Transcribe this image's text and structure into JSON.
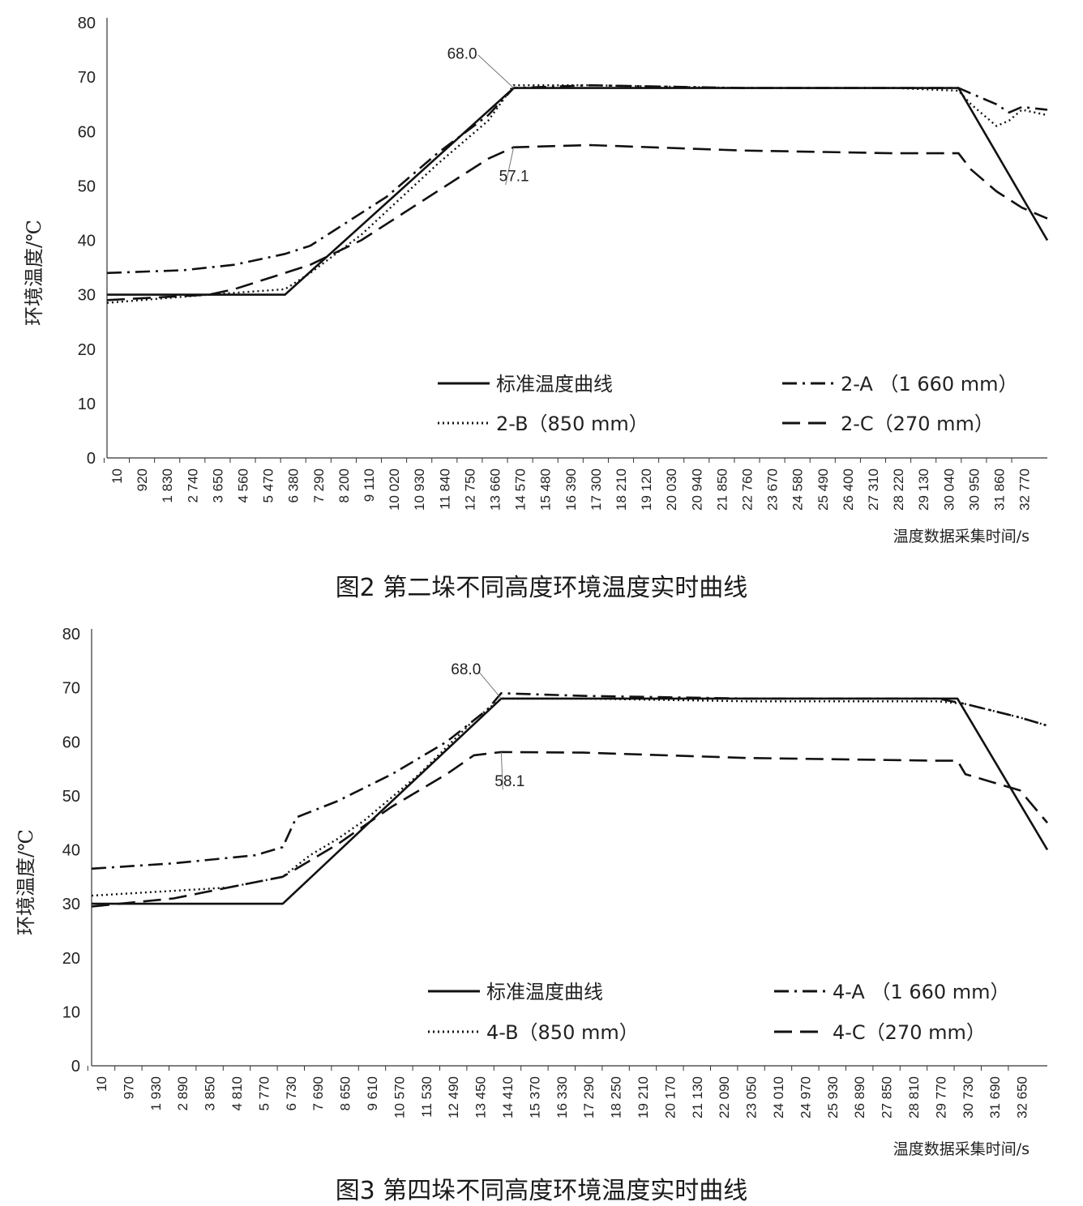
{
  "figures": [
    {
      "caption": "图2  第二垛不同高度环境温度实时曲线",
      "chart_data": {
        "type": "line",
        "ylabel": "环境温度/℃",
        "xlabel": "温度数据采集时间/s",
        "ylim": [
          0,
          80
        ],
        "yticks": [
          0,
          10,
          20,
          30,
          40,
          50,
          60,
          70,
          80
        ],
        "xlim": [
          10,
          33680
        ],
        "x_tick_labels": [
          "10",
          "920",
          "1 830",
          "2 740",
          "3 650",
          "4 560",
          "5 470",
          "6 380",
          "7 290",
          "8 200",
          "9 110",
          "10 020",
          "10 930",
          "11 840",
          "12 750",
          "13 660",
          "14 570",
          "15 480",
          "16 390",
          "17 300",
          "18 210",
          "19 120",
          "20 030",
          "20 940",
          "21 850",
          "22 760",
          "23 670",
          "24 580",
          "25 490",
          "26 400",
          "27 310",
          "28 220",
          "29 130",
          "30 040",
          "30 950",
          "31 860",
          "32 770"
        ],
        "legend": "bottom",
        "series": [
          {
            "name": "标准温度曲线",
            "style": "solid",
            "x": [
              10,
              6380,
              14570,
              30500,
              33680
            ],
            "y": [
              30,
              30,
              68,
              68,
              40
            ]
          },
          {
            "name": "2-A （1 660 mm）",
            "style": "dashdot",
            "x": [
              10,
              2740,
              4560,
              6380,
              7290,
              8200,
              10020,
              11840,
              13660,
              14570,
              17300,
              22760,
              28220,
              30500,
              30950,
              31860,
              32310,
              32770,
              33680
            ],
            "y": [
              34,
              34.5,
              35.5,
              37.5,
              39,
              42,
              48,
              56,
              63,
              68,
              68.5,
              68,
              68,
              68,
              67,
              65,
              63.5,
              64.5,
              64
            ]
          },
          {
            "name": "2-B（850 mm）",
            "style": "dotted",
            "x": [
              10,
              3650,
              6380,
              7290,
              9110,
              11840,
              13660,
              14570,
              17300,
              22760,
              28220,
              30500,
              30950,
              31860,
              32310,
              32770,
              33680
            ],
            "y": [
              28.5,
              30,
              31,
              34,
              41,
              54,
              62,
              68.5,
              68.5,
              68,
              68,
              67.5,
              65,
              61,
              62,
              64,
              63
            ]
          },
          {
            "name": "2-C（270 mm）",
            "style": "dashed",
            "x": [
              10,
              3650,
              4560,
              6380,
              7290,
              9110,
              10930,
              12750,
              13660,
              14570,
              17300,
              22760,
              28220,
              30500,
              30950,
              31860,
              32770,
              33680
            ],
            "y": [
              29,
              30,
              31,
              34,
              35.5,
              40,
              46,
              52,
              55,
              57.1,
              57.5,
              56.5,
              56,
              56,
              53,
              49,
              46,
              44
            ]
          }
        ],
        "annotations": [
          {
            "text": "68.0",
            "x": 14570,
            "y": 68
          },
          {
            "text": "57.1",
            "x": 14570,
            "y": 57.1
          }
        ]
      }
    },
    {
      "caption": "图3  第四垛不同高度环境温度实时曲线",
      "chart_data": {
        "type": "line",
        "ylabel": "环境温度/℃",
        "xlabel": "温度数据采集时间/s",
        "ylim": [
          0,
          80
        ],
        "yticks": [
          0,
          10,
          20,
          30,
          40,
          50,
          60,
          70,
          80
        ],
        "xlim": [
          10,
          33610
        ],
        "x_tick_labels": [
          "10",
          "970",
          "1 930",
          "2 890",
          "3 850",
          "4 810",
          "5 770",
          "6 730",
          "7 690",
          "8 650",
          "9 610",
          "10 570",
          "11 530",
          "12 490",
          "13 450",
          "14 410",
          "15 370",
          "16 330",
          "17 290",
          "18 250",
          "19 210",
          "20 170",
          "21 130",
          "22 090",
          "23 050",
          "24 010",
          "24 970",
          "25 930",
          "26 890",
          "27 850",
          "28 810",
          "29 770",
          "30 730",
          "31 690",
          "32 650"
        ],
        "legend": "bottom",
        "series": [
          {
            "name": "标准温度曲线",
            "style": "solid",
            "x": [
              10,
              6730,
              14410,
              30450,
              33610
            ],
            "y": [
              30,
              30,
              68,
              68,
              40
            ]
          },
          {
            "name": "4-A （1 660 mm）",
            "style": "dashdot",
            "x": [
              10,
              2890,
              5770,
              6730,
              7210,
              8650,
              10570,
              12490,
              13930,
              14410,
              17290,
              23050,
              29770,
              30730,
              32650,
              33610
            ],
            "y": [
              36.5,
              37.5,
              39,
              40.5,
              46,
              49,
              54,
              60,
              66,
              69,
              68.5,
              68,
              68,
              67,
              64.5,
              63
            ]
          },
          {
            "name": "4-B（850 mm）",
            "style": "dotted",
            "x": [
              10,
              4810,
              6730,
              7690,
              8650,
              9610,
              11530,
              13450,
              14410,
              17290,
              23050,
              29770,
              30730,
              32650,
              33610
            ],
            "y": [
              31.5,
              33,
              35,
              39,
              42,
              45.5,
              54,
              64,
              68,
              68,
              67.5,
              67.5,
              67,
              64.5,
              63
            ]
          },
          {
            "name": "4-C（270 mm）",
            "style": "dashed",
            "x": [
              10,
              2890,
              4810,
              6730,
              8650,
              10570,
              12490,
              13450,
              14410,
              17290,
              23050,
              29770,
              30450,
              30730,
              31690,
              32650,
              33610
            ],
            "y": [
              29.5,
              31,
              33,
              35,
              41,
              48,
              54,
              57.5,
              58.1,
              58,
              57,
              56.5,
              56.5,
              54,
              52.5,
              51,
              45
            ]
          }
        ],
        "annotations": [
          {
            "text": "68.0",
            "x": 14410,
            "y": 68
          },
          {
            "text": "58.1",
            "x": 14410,
            "y": 58.1
          }
        ]
      }
    }
  ]
}
